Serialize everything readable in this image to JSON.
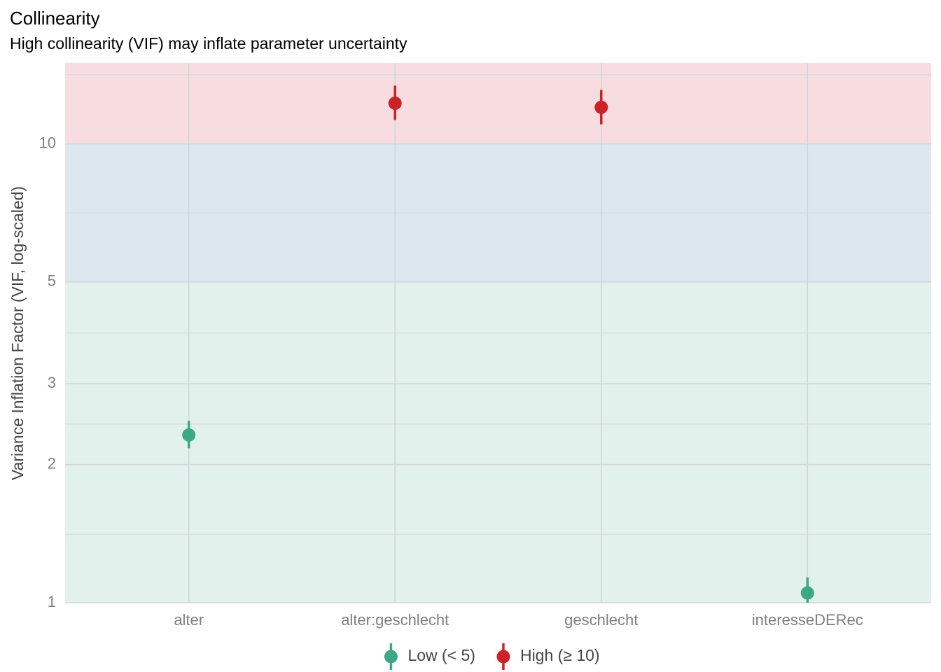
{
  "chart_data": {
    "type": "pointrange",
    "title": "Collinearity",
    "subtitle": "High collinearity (VIF) may inflate parameter uncertainty",
    "y_label": "Variance Inflation Factor (VIF, log-scaled)",
    "log_y": true,
    "grid": true,
    "legend": "bottom",
    "categories": [
      "alter",
      "alter:geschlecht",
      "geschlecht",
      "interesseDERec"
    ],
    "series": [
      {
        "name": "Low (< 5)",
        "color": "#3aaa85",
        "values": [
          2.32,
          null,
          null,
          1.05
        ],
        "ci_low": [
          2.17,
          null,
          null,
          1
        ],
        "ci_high": [
          2.49,
          null,
          null,
          1.135
        ]
      },
      {
        "name": "High (≥ 10)",
        "color": "#cd2027",
        "values": [
          null,
          12.26,
          12.01,
          null
        ],
        "ci_low": [
          null,
          11.27,
          11.03,
          null
        ],
        "ci_high": [
          null,
          13.39,
          13.11,
          null
        ]
      }
    ],
    "zones": [
      {
        "from": 1,
        "to": 5,
        "color": "#e2f1eb"
      },
      {
        "from": 5,
        "to": 10,
        "color": "#dde7ef"
      },
      {
        "from": 10,
        "to": 15,
        "color": "#f8dde0"
      }
    ],
    "ylim": [
      1,
      15
    ],
    "yticks": [
      1,
      2,
      3,
      5,
      10
    ],
    "y_minor_grid": [
      1.41,
      2.45,
      3.87,
      7.07,
      14.14
    ]
  }
}
